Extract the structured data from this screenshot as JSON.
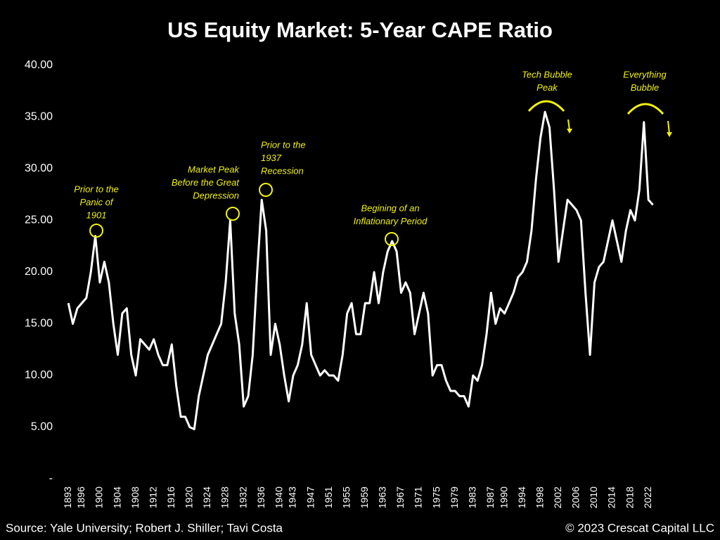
{
  "chart_data": {
    "type": "line",
    "title": "US Equity Market: 5-Year CAPE Ratio",
    "source": "Source: Yale University; Robert J. Shiller; Tavi Costa",
    "copyright": "© 2023 Crescat Capital LLC",
    "annotations": [
      [
        "Prior to the",
        "Panic of",
        "1901"
      ],
      [
        "Market Peak",
        "Before the Great",
        "Depression"
      ],
      [
        "Prior to the",
        "1937",
        "Recession"
      ],
      [
        "Begining of an",
        "Inflationary Period"
      ],
      [
        "Tech Bubble",
        "Peak"
      ],
      [
        "Everything",
        "Bubble"
      ]
    ],
    "color": "#ffffff",
    "annotation_color": "#f2f20a",
    "x": [
      1893,
      1894,
      1895,
      1896,
      1897,
      1898,
      1899,
      1900,
      1901,
      1902,
      1903,
      1904,
      1905,
      1906,
      1907,
      1908,
      1909,
      1910,
      1911,
      1912,
      1913,
      1914,
      1915,
      1916,
      1917,
      1918,
      1919,
      1920,
      1921,
      1922,
      1923,
      1924,
      1925,
      1926,
      1927,
      1928,
      1929,
      1930,
      1931,
      1932,
      1933,
      1934,
      1935,
      1936,
      1937,
      1938,
      1939,
      1940,
      1941,
      1942,
      1943,
      1944,
      1945,
      1946,
      1947,
      1948,
      1949,
      1950,
      1951,
      1952,
      1953,
      1954,
      1955,
      1956,
      1957,
      1958,
      1959,
      1960,
      1961,
      1962,
      1963,
      1964,
      1965,
      1966,
      1967,
      1968,
      1969,
      1970,
      1971,
      1972,
      1973,
      1974,
      1975,
      1976,
      1977,
      1978,
      1979,
      1980,
      1981,
      1982,
      1983,
      1984,
      1985,
      1986,
      1987,
      1988,
      1989,
      1990,
      1991,
      1992,
      1993,
      1994,
      1995,
      1996,
      1997,
      1998,
      1999,
      2000,
      2001,
      2002,
      2003,
      2004,
      2005,
      2006,
      2007,
      2008,
      2009,
      2010,
      2011,
      2012,
      2013,
      2014,
      2015,
      2016,
      2017,
      2018,
      2019,
      2020,
      2021,
      2022,
      2023
    ],
    "values": [
      17,
      15,
      16.5,
      17,
      17.5,
      20,
      23.5,
      19,
      21,
      19,
      15,
      12,
      16,
      16.5,
      12,
      10,
      13.5,
      13,
      12.5,
      13.5,
      12,
      11,
      11,
      13,
      9,
      6,
      6,
      5,
      4.8,
      8,
      10,
      12,
      13,
      14,
      15,
      19,
      25,
      16,
      13,
      7,
      8,
      12,
      20,
      27,
      24,
      12,
      15,
      13,
      10,
      7.5,
      10,
      11,
      13,
      17,
      12,
      11,
      10,
      10.5,
      10,
      10,
      9.5,
      12,
      16,
      17,
      14,
      14,
      17,
      17,
      20,
      17,
      20,
      22,
      23,
      22,
      18,
      19,
      18,
      14,
      16,
      18,
      16,
      10,
      11,
      11,
      9.5,
      8.5,
      8.5,
      8,
      8,
      7,
      10,
      9.5,
      11,
      14,
      18,
      15,
      16.5,
      16,
      17,
      18,
      19.5,
      20,
      21,
      24,
      29,
      33,
      35.5,
      34,
      28,
      21,
      24,
      27,
      26.5,
      26,
      25,
      18,
      12,
      19,
      20.5,
      21,
      23,
      25,
      23,
      21,
      24,
      26,
      25,
      28,
      34.5,
      27,
      26.5
    ],
    "xlim": [
      1892.5,
      2024
    ],
    "xticks": [
      1893,
      1896,
      1900,
      1904,
      1908,
      1912,
      1916,
      1920,
      1924,
      1928,
      1932,
      1936,
      1940,
      1943,
      1947,
      1951,
      1955,
      1959,
      1963,
      1967,
      1971,
      1975,
      1979,
      1983,
      1987,
      1990,
      1994,
      1998,
      2002,
      2006,
      2010,
      2014,
      2018,
      2022
    ],
    "ylim": [
      0,
      40
    ],
    "yticks": [
      {
        "value": 0,
        "label": "-"
      },
      {
        "value": 5,
        "label": "5.00"
      },
      {
        "value": 10,
        "label": "10.00"
      },
      {
        "value": 15,
        "label": "15.00"
      },
      {
        "value": 20,
        "label": "20.00"
      },
      {
        "value": 25,
        "label": "25.00"
      },
      {
        "value": 30,
        "label": "30.00"
      },
      {
        "value": 35,
        "label": "35.00"
      },
      {
        "value": 40,
        "label": "40.00"
      }
    ],
    "grid": false
  }
}
